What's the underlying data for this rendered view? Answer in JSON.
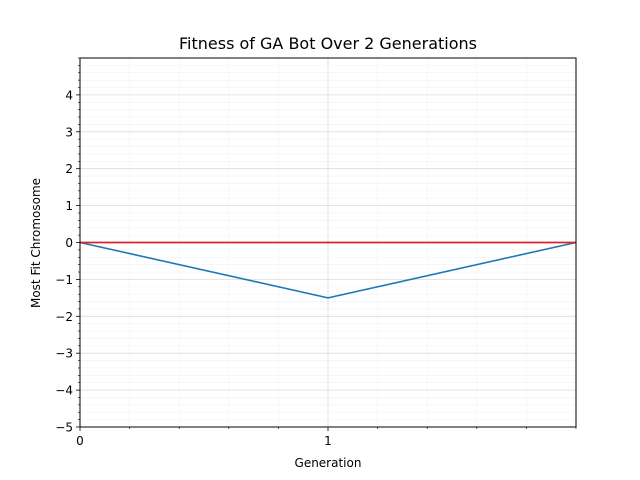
{
  "chart_data": {
    "type": "line",
    "title": "Fitness of GA Bot Over 2 Generations",
    "xlabel": "Generation",
    "ylabel": "Most Fit Chromosome",
    "xlim": [
      0,
      2
    ],
    "ylim": [
      -5,
      5
    ],
    "x_ticks": [
      0,
      1
    ],
    "y_ticks": [
      -5,
      -4,
      -3,
      -2,
      -1,
      0,
      1,
      2,
      3,
      4
    ],
    "x_minor_step": 0.2,
    "y_minor_step": 0.2,
    "grid": true,
    "series": [
      {
        "x": [
          0,
          1,
          2
        ],
        "values": [
          0,
          -1.5,
          0
        ],
        "color": "#1f77b4"
      }
    ],
    "hlines": [
      {
        "y": 0,
        "color": "#d62728"
      }
    ]
  }
}
